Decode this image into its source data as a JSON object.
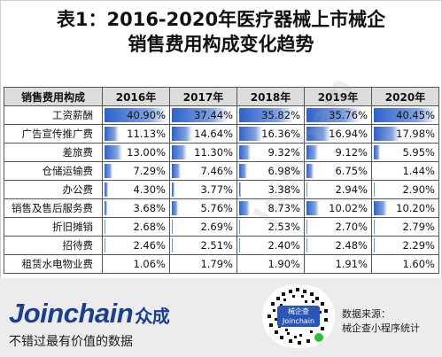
{
  "title": {
    "line1": "表1：2016-2020年医疗器械上市械企",
    "line2": "销售费用构成变化趋势"
  },
  "table": {
    "corner": "销售费用构成",
    "years": [
      "2016年",
      "2017年",
      "2018年",
      "2019年",
      "2020年"
    ],
    "rows": [
      {
        "label": "工资薪酬",
        "values": [
          "40.90%",
          "37.44%",
          "35.82%",
          "35.76%",
          "40.45%"
        ]
      },
      {
        "label": "广告宣传推广费",
        "values": [
          "11.13%",
          "14.64%",
          "16.36%",
          "16.94%",
          "17.98%"
        ]
      },
      {
        "label": "差旅费",
        "values": [
          "13.00%",
          "11.30%",
          "9.32%",
          "9.12%",
          "5.95%"
        ]
      },
      {
        "label": "仓储运输费",
        "values": [
          "7.29%",
          "7.46%",
          "6.98%",
          "6.75%",
          "1.44%"
        ]
      },
      {
        "label": "办公费",
        "values": [
          "4.30%",
          "3.77%",
          "3.38%",
          "2.94%",
          "2.90%"
        ]
      },
      {
        "label": "销售及售后服务费",
        "values": [
          "3.68%",
          "5.76%",
          "8.73%",
          "10.02%",
          "10.20%"
        ]
      },
      {
        "label": "折旧摊销",
        "values": [
          "2.68%",
          "2.69%",
          "2.53%",
          "2.70%",
          "2.79%"
        ]
      },
      {
        "label": "招待费",
        "values": [
          "2.46%",
          "2.51%",
          "2.40%",
          "2.48%",
          "2.29%"
        ]
      },
      {
        "label": "租赁水电物业费",
        "values": [
          "1.06%",
          "1.79%",
          "1.90%",
          "1.91%",
          "1.60%"
        ]
      }
    ],
    "bar_max_percent": 41,
    "bar_color": "#2f62c9"
  },
  "watermark": "Joinchain",
  "footer": {
    "brand_en": "Joinchain",
    "brand_cn": "众成",
    "slogan": "不错过最有价值的数据",
    "qr_label_cn": "械企查",
    "qr_label_en": "Joinchain",
    "source_line1": "数据来源：",
    "source_line2": "械企查小程序统计",
    "brand_color": "#1b3f8f",
    "background": "#ececec"
  }
}
